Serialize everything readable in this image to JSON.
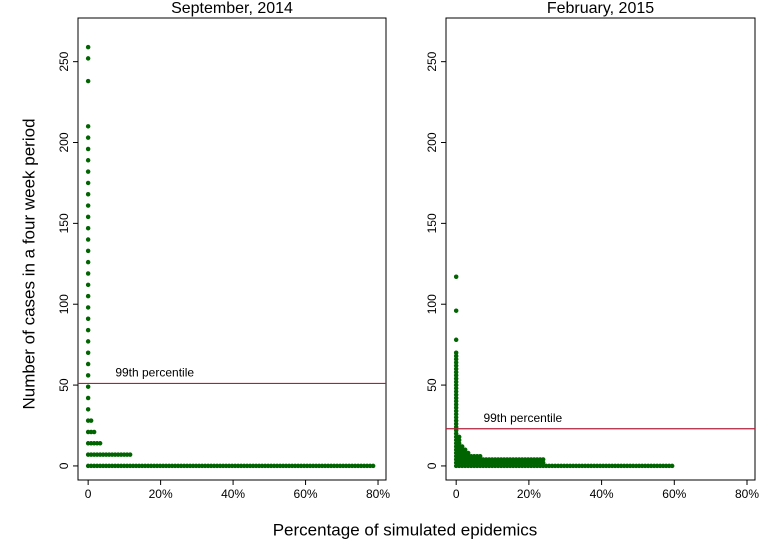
{
  "ylabel": "Number of cases in a four week period",
  "xlabel": "Percentage of simulated epidemics",
  "chart_data": [
    {
      "type": "dotrow",
      "title": "September, 2014",
      "color": "#006400",
      "y": [
        0,
        7,
        14,
        21,
        28,
        35,
        42,
        49,
        56,
        63,
        70,
        77,
        84,
        91,
        98,
        105,
        112,
        119,
        126,
        133,
        140,
        147,
        154,
        161,
        168,
        175,
        182,
        189,
        196,
        203,
        210,
        238,
        252,
        259
      ],
      "values": [
        79,
        12,
        3.5,
        2,
        1,
        0.5,
        0.3,
        0.3,
        0.3,
        0.3,
        0.3,
        0.3,
        0.3,
        0.3,
        0.3,
        0.3,
        0.3,
        0.3,
        0.3,
        0.3,
        0.3,
        0.3,
        0.3,
        0.3,
        0.3,
        0.3,
        0.3,
        0.3,
        0.3,
        0.3,
        0.3,
        0.3,
        0.3,
        0.3
      ],
      "xlim": [
        -2.8,
        82.2
      ],
      "ylim": [
        -8.7,
        277
      ],
      "xticks": [
        0,
        {
          "value": 20,
          "label": "20%"
        },
        {
          "value": 40,
          "label": "40%"
        },
        {
          "value": 60,
          "label": "60%"
        },
        {
          "value": 80,
          "label": "80%"
        }
      ],
      "yticks": [
        0,
        50,
        100,
        150,
        200,
        250
      ],
      "hline": {
        "value": 51,
        "label": "99th percentile",
        "color": "#b0203c"
      }
    },
    {
      "type": "dotrow",
      "title": "February, 2015",
      "color": "#006400",
      "y": [
        0,
        2,
        4,
        6,
        8,
        10,
        12,
        14,
        16,
        18,
        20,
        22,
        24,
        26,
        28,
        30,
        32,
        34,
        36,
        38,
        40,
        42,
        44,
        46,
        48,
        50,
        52,
        54,
        56,
        58,
        60,
        62,
        64,
        66,
        68,
        70,
        78,
        96,
        117
      ],
      "values": [
        60,
        24,
        24,
        7,
        4,
        3,
        2,
        1.5,
        1,
        1,
        0.5,
        0.5,
        0.3,
        0.3,
        0.3,
        0.3,
        0.3,
        0.3,
        0.3,
        0.3,
        0.3,
        0.3,
        0.3,
        0.3,
        0.3,
        0.3,
        0.3,
        0.3,
        0.3,
        0.3,
        0.3,
        0.3,
        0.3,
        0.3,
        0.3,
        0.3,
        0.3,
        0.3,
        0.3
      ],
      "xlim": [
        -2.8,
        82.2
      ],
      "ylim": [
        -8.7,
        277
      ],
      "xticks": [
        0,
        {
          "value": 20,
          "label": "20%"
        },
        {
          "value": 40,
          "label": "40%"
        },
        {
          "value": 60,
          "label": "60%"
        },
        {
          "value": 80,
          "label": "80%"
        }
      ],
      "yticks": [
        0,
        50,
        100,
        150,
        200,
        250
      ],
      "hline": {
        "value": 23,
        "label": "99th percentile",
        "color": "#b0203c"
      }
    }
  ]
}
